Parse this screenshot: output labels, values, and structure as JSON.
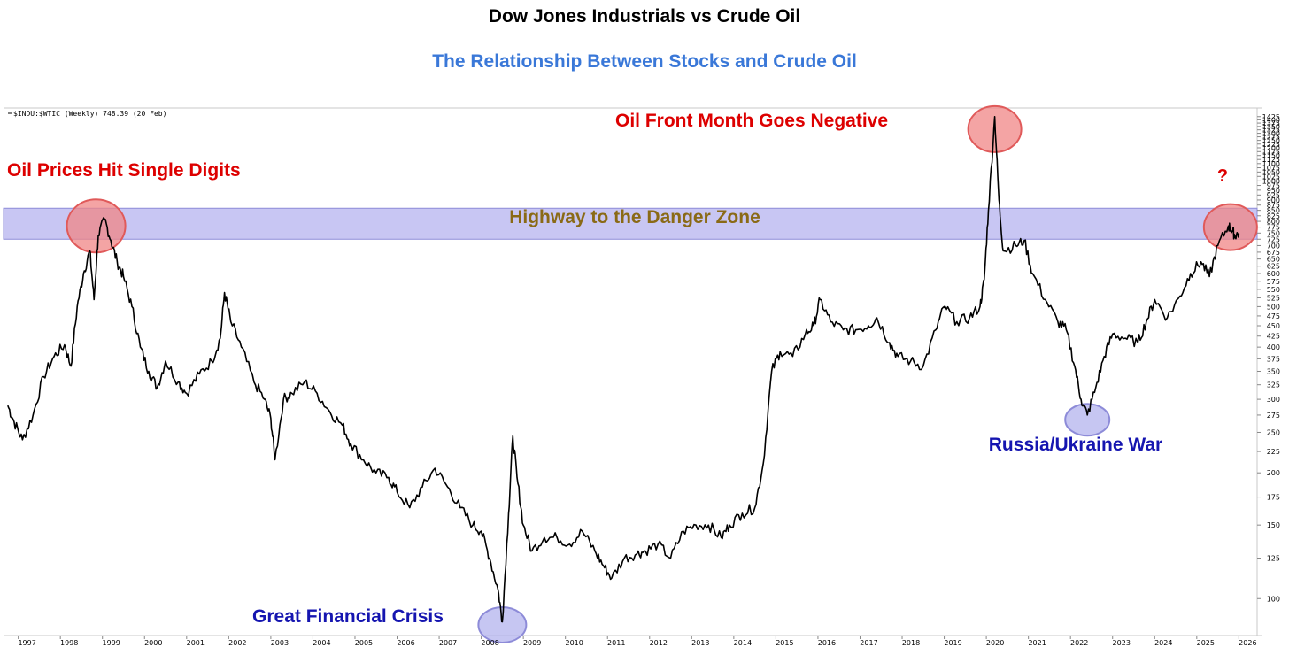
{
  "title": "Dow Jones Industrials vs Crude Oil",
  "subtitle": "The Relationship Between Stocks and Crude Oil",
  "legend": "$INDU:$WTIC (Weekly) 748.39 (20 Feb)",
  "annotations": {
    "single_digits": "Oil Prices Hit Single Digits",
    "negative": "Oil Front Month Goes Negative",
    "danger_zone": "Highway to the Danger Zone",
    "question": "?",
    "russia": "Russia/Ukraine War",
    "gfc": "Great Financial Crisis"
  },
  "colors": {
    "red_text": "#dd0000",
    "blue_text": "#1515b0",
    "zone_text": "#8a6a16",
    "zone_fill": "#aaa8ec",
    "red_circle": "#f08686",
    "blue_circle": "#b3b3ee",
    "line": "#000000"
  },
  "chart_data": {
    "type": "line",
    "title": "Dow Jones Industrials vs Crude Oil",
    "subtitle": "The Relationship Between Stocks and Crude Oil",
    "series": [
      {
        "name": "$INDU:$WTIC (Weekly)",
        "points": [
          [
            1996.85,
            290
          ],
          [
            1997.0,
            265
          ],
          [
            1997.2,
            240
          ],
          [
            1997.45,
            275
          ],
          [
            1997.7,
            340
          ],
          [
            1997.95,
            380
          ],
          [
            1998.2,
            405
          ],
          [
            1998.35,
            360
          ],
          [
            1998.5,
            500
          ],
          [
            1998.65,
            600
          ],
          [
            1998.8,
            680
          ],
          [
            1998.9,
            520
          ],
          [
            1999.0,
            740
          ],
          [
            1999.15,
            810
          ],
          [
            1999.3,
            720
          ],
          [
            1999.45,
            640
          ],
          [
            1999.6,
            590
          ],
          [
            1999.8,
            500
          ],
          [
            2000.0,
            400
          ],
          [
            2000.2,
            350
          ],
          [
            2000.4,
            320
          ],
          [
            2000.6,
            370
          ],
          [
            2000.9,
            330
          ],
          [
            2001.1,
            310
          ],
          [
            2001.4,
            345
          ],
          [
            2001.7,
            370
          ],
          [
            2001.9,
            420
          ],
          [
            2002.0,
            540
          ],
          [
            2002.15,
            460
          ],
          [
            2002.4,
            400
          ],
          [
            2002.7,
            330
          ],
          [
            2002.95,
            300
          ],
          [
            2003.1,
            270
          ],
          [
            2003.2,
            215
          ],
          [
            2003.4,
            300
          ],
          [
            2003.6,
            310
          ],
          [
            2003.9,
            330
          ],
          [
            2004.2,
            310
          ],
          [
            2004.5,
            280
          ],
          [
            2004.8,
            260
          ],
          [
            2005.0,
            235
          ],
          [
            2005.3,
            215
          ],
          [
            2005.6,
            200
          ],
          [
            2005.9,
            195
          ],
          [
            2006.1,
            180
          ],
          [
            2006.4,
            165
          ],
          [
            2006.7,
            185
          ],
          [
            2007.0,
            205
          ],
          [
            2007.3,
            185
          ],
          [
            2007.6,
            165
          ],
          [
            2007.9,
            150
          ],
          [
            2008.1,
            145
          ],
          [
            2008.3,
            125
          ],
          [
            2008.5,
            105
          ],
          [
            2008.6,
            88
          ],
          [
            2008.75,
            160
          ],
          [
            2008.85,
            245
          ],
          [
            2008.95,
            195
          ],
          [
            2009.1,
            150
          ],
          [
            2009.3,
            130
          ],
          [
            2009.6,
            140
          ],
          [
            2009.9,
            140
          ],
          [
            2010.2,
            135
          ],
          [
            2010.5,
            145
          ],
          [
            2010.8,
            130
          ],
          [
            2011.0,
            120
          ],
          [
            2011.2,
            112
          ],
          [
            2011.5,
            125
          ],
          [
            2011.8,
            128
          ],
          [
            2012.0,
            130
          ],
          [
            2012.3,
            135
          ],
          [
            2012.6,
            125
          ],
          [
            2012.9,
            145
          ],
          [
            2013.2,
            150
          ],
          [
            2013.5,
            150
          ],
          [
            2013.8,
            140
          ],
          [
            2014.0,
            150
          ],
          [
            2014.3,
            160
          ],
          [
            2014.6,
            165
          ],
          [
            2014.8,
            210
          ],
          [
            2015.0,
            350
          ],
          [
            2015.2,
            390
          ],
          [
            2015.5,
            380
          ],
          [
            2015.8,
            430
          ],
          [
            2016.0,
            450
          ],
          [
            2016.15,
            520
          ],
          [
            2016.4,
            460
          ],
          [
            2016.7,
            440
          ],
          [
            2017.0,
            440
          ],
          [
            2017.3,
            450
          ],
          [
            2017.5,
            470
          ],
          [
            2017.8,
            410
          ],
          [
            2018.0,
            380
          ],
          [
            2018.3,
            370
          ],
          [
            2018.6,
            360
          ],
          [
            2018.9,
            440
          ],
          [
            2019.1,
            500
          ],
          [
            2019.4,
            460
          ],
          [
            2019.7,
            470
          ],
          [
            2019.95,
            500
          ],
          [
            2020.05,
            580
          ],
          [
            2020.15,
            850
          ],
          [
            2020.3,
            1425
          ],
          [
            2020.4,
            900
          ],
          [
            2020.5,
            680
          ],
          [
            2020.8,
            700
          ],
          [
            2021.0,
            720
          ],
          [
            2021.2,
            600
          ],
          [
            2021.5,
            520
          ],
          [
            2021.8,
            460
          ],
          [
            2022.0,
            440
          ],
          [
            2022.2,
            360
          ],
          [
            2022.35,
            300
          ],
          [
            2022.5,
            275
          ],
          [
            2022.7,
            320
          ],
          [
            2022.9,
            380
          ],
          [
            2023.1,
            430
          ],
          [
            2023.4,
            420
          ],
          [
            2023.7,
            410
          ],
          [
            2023.9,
            460
          ],
          [
            2024.1,
            520
          ],
          [
            2024.4,
            470
          ],
          [
            2024.7,
            530
          ],
          [
            2024.95,
            600
          ],
          [
            2025.2,
            640
          ],
          [
            2025.4,
            590
          ],
          [
            2025.6,
            700
          ],
          [
            2025.85,
            780
          ],
          [
            2025.95,
            760
          ],
          [
            2026.0,
            740
          ],
          [
            2026.1,
            748.39
          ]
        ]
      }
    ],
    "x_ticks": [
      "1997",
      "1998",
      "1999",
      "2000",
      "2001",
      "2002",
      "2003",
      "2004",
      "2005",
      "2006",
      "2007",
      "2008",
      "2009",
      "2010",
      "2011",
      "2012",
      "2013",
      "2014",
      "2015",
      "2016",
      "2017",
      "2018",
      "2019",
      "2020",
      "2021",
      "2022",
      "2023",
      "2024",
      "2025",
      "2026"
    ],
    "y_scale": "log",
    "y_ticks": [
      "100",
      "125",
      "150",
      "175",
      "200",
      "225",
      "250",
      "275",
      "300",
      "325",
      "350",
      "375",
      "400",
      "425",
      "450",
      "475",
      "500",
      "525",
      "550",
      "575",
      "600",
      "625",
      "650",
      "675",
      "700",
      "725",
      "750",
      "775",
      "800",
      "825",
      "850",
      "875",
      "900",
      "925",
      "950",
      "975",
      "1000",
      "1025",
      "1050",
      "1075",
      "1100",
      "1125",
      "1150",
      "1175",
      "1200",
      "1225",
      "1250",
      "1275",
      "1300",
      "1325",
      "1350",
      "1375",
      "1400",
      "1425"
    ],
    "xlim": [
      1996.75,
      2026.45
    ],
    "ylim": [
      84,
      1480
    ],
    "danger_zone": [
      725,
      860
    ],
    "grid": false,
    "legend": "top-left"
  }
}
